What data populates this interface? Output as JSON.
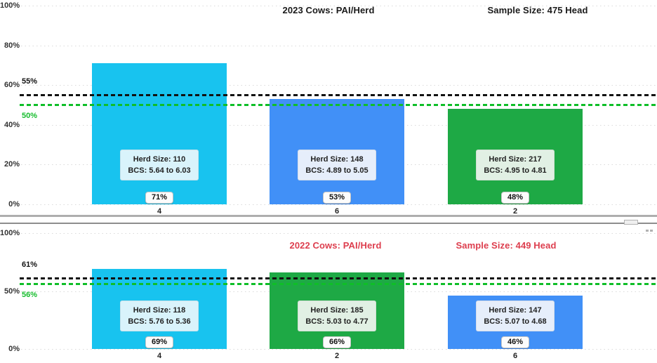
{
  "chart_data": [
    {
      "type": "bar",
      "title": "2023 Cows: PAI/Herd",
      "sample_size_label": "Sample Size: 475 Head",
      "title_color": "#1a1a1a",
      "categories": [
        "4",
        "6",
        "2"
      ],
      "values": [
        71,
        53,
        48
      ],
      "value_labels": [
        "71%",
        "53%",
        "48%"
      ],
      "bar_colors": [
        "#18c3ef",
        "#4190f7",
        "#1ea945"
      ],
      "bar_box_colors": [
        "#d9f3fb",
        "#e6eefb",
        "#e1f0e4"
      ],
      "bar_annotations": [
        {
          "herd": "Herd Size: 110",
          "bcs": "BCS: 5.64 to 6.03"
        },
        {
          "herd": "Herd Size: 148",
          "bcs": "BCS: 4.89 to 5.05"
        },
        {
          "herd": "Herd Size: 217",
          "bcs": "BCS: 4.95 to 4.81"
        }
      ],
      "ref_lines": [
        {
          "label": "55%",
          "value": 55,
          "color": "#111111",
          "label_color": "#111111"
        },
        {
          "label": "50%",
          "value": 50,
          "color": "#0fbe28",
          "label_color": "#15bc2c"
        }
      ],
      "y_ticks": [
        {
          "label": "100%",
          "value": 100
        },
        {
          "label": "80%",
          "value": 80
        },
        {
          "label": "60%",
          "value": 60
        },
        {
          "label": "40%",
          "value": 40
        },
        {
          "label": "20%",
          "value": 20
        },
        {
          "label": "0%",
          "value": 0
        }
      ],
      "ylim": [
        0,
        100
      ],
      "grid": true,
      "legend": false
    },
    {
      "type": "bar",
      "title": "2022 Cows: PAI/Herd",
      "sample_size_label": "Sample Size: 449 Head",
      "title_color": "#dd3e4e",
      "categories": [
        "4",
        "2",
        "6"
      ],
      "values": [
        69,
        66,
        46
      ],
      "value_labels": [
        "69%",
        "66%",
        "46%"
      ],
      "bar_colors": [
        "#18c3ef",
        "#1ea945",
        "#4190f7"
      ],
      "bar_box_colors": [
        "#d9f3fb",
        "#e1f0e4",
        "#e6eefb"
      ],
      "bar_annotations": [
        {
          "herd": "Herd Size: 118",
          "bcs": "BCS: 5.76 to 5.36"
        },
        {
          "herd": "Herd Size: 185",
          "bcs": "BCS: 5.03 to 4.77"
        },
        {
          "herd": "Herd Size: 147",
          "bcs": "BCS: 5.07 to 4.68"
        }
      ],
      "ref_lines": [
        {
          "label": "61%",
          "value": 61,
          "color": "#111111",
          "label_color": "#111111"
        },
        {
          "label": "56%",
          "value": 56,
          "color": "#0fbe28",
          "label_color": "#15bc2c"
        }
      ],
      "y_ticks": [
        {
          "label": "100%",
          "value": 100
        },
        {
          "label": "50%",
          "value": 50
        },
        {
          "label": "0%",
          "value": 0
        }
      ],
      "ylim": [
        0,
        100
      ],
      "grid": true,
      "legend": false
    }
  ],
  "divider": {
    "icons": [
      "resize-handle-icon",
      "grip-dots-icon"
    ]
  }
}
